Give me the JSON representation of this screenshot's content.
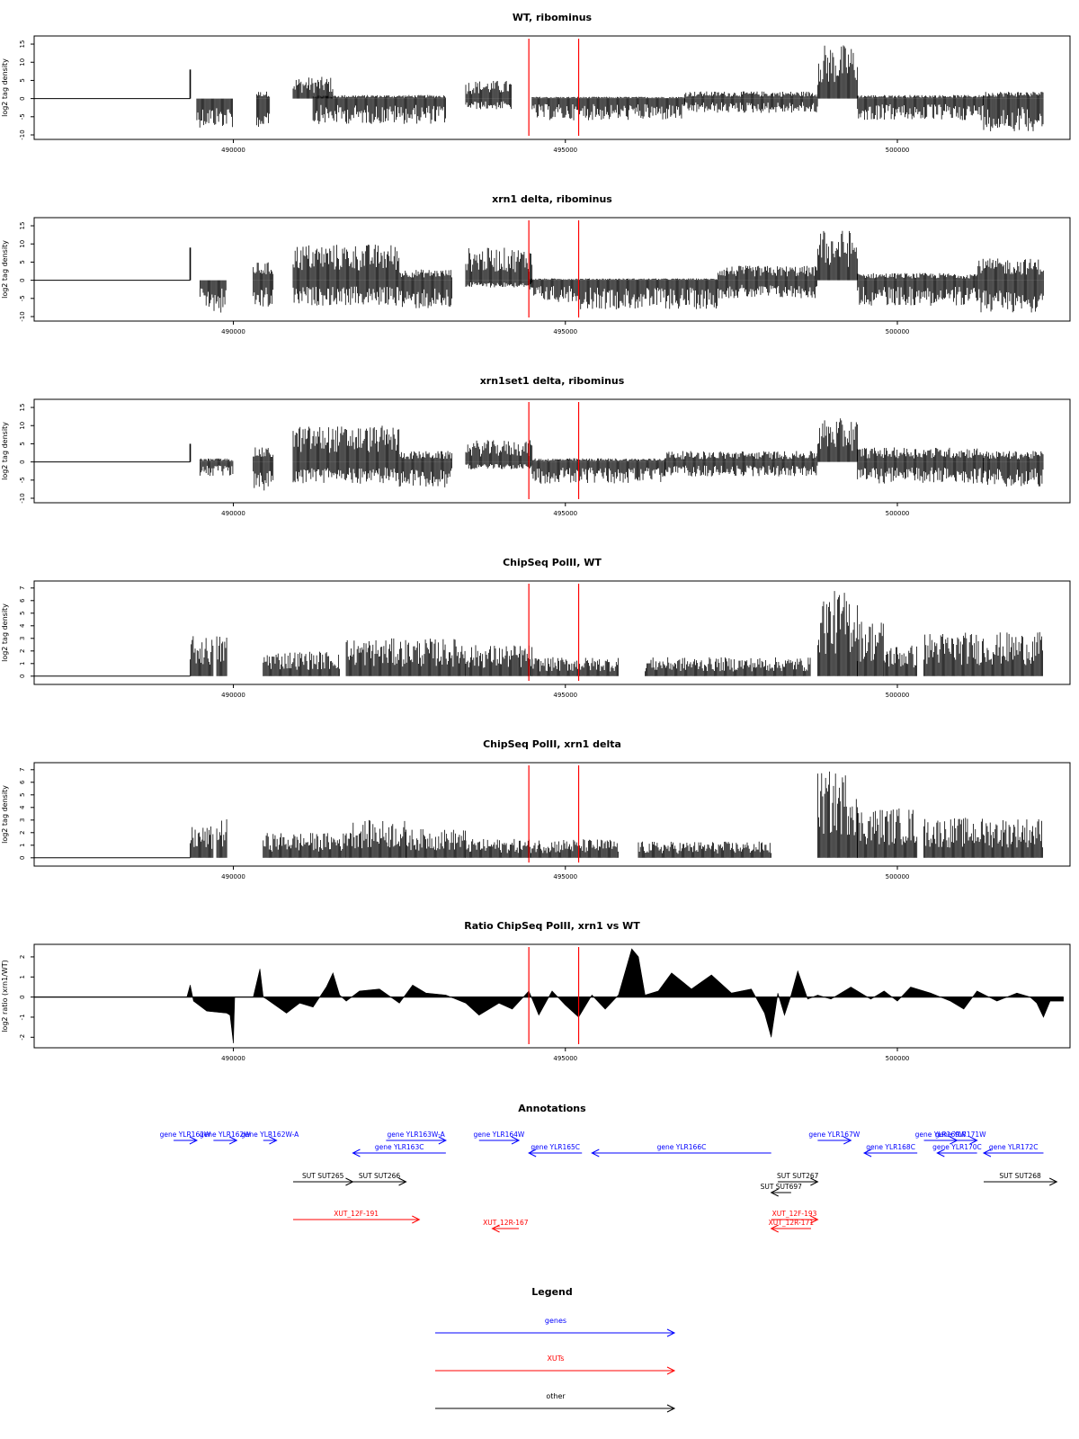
{
  "chart_data": [
    {
      "type": "bar",
      "title": "WT, ribominus",
      "xlabel": "",
      "ylabel": "log2 tag density",
      "xlim": [
        487000,
        502600
      ],
      "ylim": [
        -10,
        16
      ],
      "yticks": [
        "-10",
        "-5",
        "0",
        "5",
        "10",
        "15"
      ],
      "xticks": [
        "490000",
        "495000",
        "500000"
      ],
      "markers": [
        494450,
        495200
      ],
      "series": [
        {
          "regions": [
            [
              487000,
              489350,
              0,
              0
            ],
            [
              489350,
              489380,
              8,
              0
            ],
            [
              489450,
              490000,
              0,
              -8
            ],
            [
              490350,
              490550,
              2,
              -9
            ],
            [
              490900,
              491500,
              6,
              0
            ],
            [
              491200,
              493200,
              1,
              -7
            ],
            [
              493500,
              494200,
              5,
              -3
            ],
            [
              494500,
              496800,
              0.5,
              -6
            ],
            [
              496800,
              498800,
              2,
              -4
            ],
            [
              498800,
              499400,
              15,
              0
            ],
            [
              499400,
              501300,
              1,
              -6
            ],
            [
              501300,
              502200,
              2,
              -9
            ]
          ]
        }
      ]
    },
    {
      "type": "bar",
      "title": "xrn1 delta, ribominus",
      "xlabel": "",
      "ylabel": "log2 tag density",
      "xlim": [
        487000,
        502600
      ],
      "ylim": [
        -10,
        16
      ],
      "yticks": [
        "-10",
        "-5",
        "0",
        "5",
        "10",
        "15"
      ],
      "xticks": [
        "490000",
        "495000",
        "500000"
      ],
      "markers": [
        494450,
        495200
      ],
      "series": [
        {
          "regions": [
            [
              487000,
              489350,
              0,
              0
            ],
            [
              489350,
              489380,
              9,
              0
            ],
            [
              489500,
              489900,
              0,
              -9
            ],
            [
              490300,
              490600,
              5,
              -8
            ],
            [
              490900,
              492500,
              10,
              -7
            ],
            [
              492500,
              493300,
              3,
              -8
            ],
            [
              493500,
              494500,
              9,
              -2
            ],
            [
              494450,
              495200,
              0.5,
              -6
            ],
            [
              495200,
              497300,
              0.5,
              -8
            ],
            [
              497300,
              498800,
              4,
              -5
            ],
            [
              498800,
              499400,
              14,
              0
            ],
            [
              499400,
              501200,
              2,
              -7
            ],
            [
              501200,
              502200,
              6,
              -9
            ]
          ]
        }
      ]
    },
    {
      "type": "bar",
      "title": "xrn1set1 delta, ribominus",
      "xlabel": "",
      "ylabel": "log2 tag density",
      "xlim": [
        487000,
        502600
      ],
      "ylim": [
        -10,
        16
      ],
      "yticks": [
        "-10",
        "-5",
        "0",
        "5",
        "10",
        "15"
      ],
      "xticks": [
        "490000",
        "495000",
        "500000"
      ],
      "markers": [
        494450,
        495200
      ],
      "series": [
        {
          "regions": [
            [
              487000,
              489350,
              0,
              0
            ],
            [
              489350,
              489380,
              5,
              0
            ],
            [
              489500,
              490000,
              1,
              -4
            ],
            [
              490300,
              490600,
              4,
              -8
            ],
            [
              490900,
              492500,
              10,
              -6
            ],
            [
              492500,
              493300,
              3,
              -7
            ],
            [
              493500,
              494500,
              6,
              -2
            ],
            [
              494500,
              496500,
              1,
              -6
            ],
            [
              496500,
              498800,
              3,
              -4
            ],
            [
              498800,
              499400,
              12,
              0
            ],
            [
              499400,
              501300,
              4,
              -6
            ],
            [
              501300,
              502200,
              3,
              -7
            ]
          ]
        }
      ]
    },
    {
      "type": "bar",
      "title": "ChipSeq PolII, WT",
      "xlabel": "",
      "ylabel": "log2 tag density",
      "xlim": [
        487000,
        502600
      ],
      "ylim": [
        -0.3,
        7.2
      ],
      "yticks": [
        "0",
        "1",
        "2",
        "3",
        "4",
        "5",
        "6",
        "7"
      ],
      "xticks": [
        "490000",
        "495000",
        "500000"
      ],
      "markers": [
        494450,
        495200
      ],
      "series": [
        {
          "regions": [
            [
              487000,
              489350,
              0,
              0
            ],
            [
              489350,
              489700,
              3.2,
              0
            ],
            [
              489750,
              489900,
              3.3,
              0
            ],
            [
              490450,
              491600,
              2,
              0
            ],
            [
              491700,
              493500,
              3,
              0
            ],
            [
              493500,
              494500,
              2.5,
              0
            ],
            [
              494500,
              495800,
              1.5,
              0
            ],
            [
              496200,
              498700,
              1.5,
              0
            ],
            [
              498800,
              499400,
              6.8,
              0
            ],
            [
              499400,
              499800,
              4.5,
              0
            ],
            [
              499800,
              500300,
              2.5,
              0
            ],
            [
              500400,
              502200,
              3.5,
              0
            ]
          ]
        }
      ]
    },
    {
      "type": "bar",
      "title": "ChipSeq PolII, xrn1 delta",
      "xlabel": "",
      "ylabel": "log2 tag density",
      "xlim": [
        487000,
        502600
      ],
      "ylim": [
        -0.3,
        7.2
      ],
      "yticks": [
        "0",
        "1",
        "2",
        "3",
        "4",
        "5",
        "6",
        "7"
      ],
      "xticks": [
        "490000",
        "495000",
        "500000"
      ],
      "markers": [
        494450,
        495200
      ],
      "series": [
        {
          "regions": [
            [
              487000,
              489350,
              0,
              0
            ],
            [
              489350,
              489700,
              2.5,
              0
            ],
            [
              489750,
              489900,
              3.1,
              0
            ],
            [
              490450,
              491700,
              2,
              0
            ],
            [
              491700,
              492600,
              3,
              0
            ],
            [
              492600,
              493500,
              2.3,
              0
            ],
            [
              493500,
              495800,
              1.5,
              0
            ],
            [
              496100,
              498100,
              1.3,
              0
            ],
            [
              498800,
              499400,
              6.9,
              0
            ],
            [
              499400,
              500300,
              4,
              0
            ],
            [
              500400,
              502200,
              3.2,
              0
            ]
          ]
        }
      ]
    },
    {
      "type": "area",
      "title": "Ratio ChipSeq PolII, xrn1 vs WT",
      "xlabel": "",
      "ylabel": "log2 ratio (xrn1/WT)",
      "xlim": [
        487000,
        502600
      ],
      "ylim": [
        -2.3,
        2.4
      ],
      "yticks": [
        "-2",
        "-1",
        "0",
        "1",
        "2"
      ],
      "xticks": [
        "490000",
        "495000",
        "500000"
      ],
      "markers": [
        494450,
        495200
      ],
      "series": [
        {
          "x": [
            487000,
            489300,
            489350,
            489400,
            489600,
            489900,
            489950,
            490000,
            490020,
            490300,
            490400,
            490450,
            490500,
            490800,
            491000,
            491200,
            491400,
            491500,
            491600,
            491700,
            491900,
            492200,
            492500,
            492700,
            492900,
            493200,
            493500,
            493700,
            494000,
            494200,
            494450,
            494600,
            494800,
            495000,
            495200,
            495400,
            495600,
            495800,
            496000,
            496100,
            496200,
            496400,
            496600,
            496900,
            497200,
            497500,
            497800,
            498000,
            498100,
            498200,
            498300,
            498400,
            498500,
            498650,
            498800,
            499000,
            499300,
            499600,
            499800,
            500000,
            500200,
            500500,
            500800,
            501000,
            501200,
            501500,
            501800,
            502000,
            502100,
            502200,
            502300,
            502500
          ],
          "y": [
            0,
            0,
            0.6,
            -0.2,
            -0.7,
            -0.8,
            -0.9,
            -2.3,
            0,
            0,
            1.4,
            0,
            -0.1,
            -0.8,
            -0.3,
            -0.5,
            0.5,
            1.2,
            0.1,
            -0.2,
            0.3,
            0.4,
            -0.3,
            0.6,
            0.2,
            0.1,
            -0.3,
            -0.9,
            -0.3,
            -0.6,
            0.3,
            -0.9,
            0.3,
            -0.4,
            -1.0,
            0.1,
            -0.6,
            0.1,
            2.4,
            2.0,
            0.1,
            0.3,
            1.2,
            0.4,
            1.1,
            0.2,
            0.4,
            -0.8,
            -2.0,
            0.2,
            -0.9,
            0.1,
            1.3,
            -0.1,
            0.1,
            -0.1,
            0.5,
            -0.1,
            0.3,
            -0.2,
            0.5,
            0.2,
            -0.2,
            -0.6,
            0.3,
            -0.2,
            0.2,
            0.0,
            -0.3,
            -1.0,
            -0.2,
            -0.2
          ]
        }
      ]
    }
  ],
  "annotations": {
    "title": "Annotations",
    "genes": [
      {
        "label": "gene YLR162W",
        "start": 489100,
        "end": 489450,
        "strand": "+",
        "row": 0
      },
      {
        "label": "gene YLR162W",
        "start": 489700,
        "end": 490050,
        "strand": "+",
        "row": 0
      },
      {
        "label": "gene YLR162W-A",
        "start": 490450,
        "end": 490650,
        "strand": "+",
        "row": 0
      },
      {
        "label": "gene YLR163W-A",
        "start": 492300,
        "end": 493200,
        "strand": "+",
        "row": 0
      },
      {
        "label": "gene YLR163C",
        "start": 491800,
        "end": 493200,
        "strand": "-",
        "row": 1
      },
      {
        "label": "gene YLR164W",
        "start": 493700,
        "end": 494300,
        "strand": "+",
        "row": 0
      },
      {
        "label": "gene YLR165C",
        "start": 494450,
        "end": 495250,
        "strand": "-",
        "row": 1
      },
      {
        "label": "gene YLR166C",
        "start": 495400,
        "end": 498100,
        "strand": "-",
        "row": 1
      },
      {
        "label": "gene YLR167W",
        "start": 498800,
        "end": 499300,
        "strand": "+",
        "row": 0
      },
      {
        "label": "gene YLR169W",
        "start": 500400,
        "end": 500900,
        "strand": "+",
        "row": 0
      },
      {
        "label": "gene YLR171W",
        "start": 500700,
        "end": 501200,
        "strand": "+",
        "row": 0
      },
      {
        "label": "gene YLR168C",
        "start": 499500,
        "end": 500300,
        "strand": "-",
        "row": 1
      },
      {
        "label": "gene YLR170C",
        "start": 500600,
        "end": 501200,
        "strand": "-",
        "row": 1
      },
      {
        "label": "gene YLR172C",
        "start": 501300,
        "end": 502200,
        "strand": "-",
        "row": 1
      }
    ],
    "suts": [
      {
        "label": "SUT SUT265",
        "start": 490900,
        "end": 491800,
        "strand": "+",
        "row": 0
      },
      {
        "label": "SUT SUT266",
        "start": 491800,
        "end": 492600,
        "strand": "+",
        "row": 0
      },
      {
        "label": "SUT SUT267",
        "start": 498200,
        "end": 498800,
        "strand": "+",
        "row": 0
      },
      {
        "label": "SUT SUT697",
        "start": 498100,
        "end": 498400,
        "strand": "-",
        "row": 1
      },
      {
        "label": "SUT SUT268",
        "start": 501300,
        "end": 502400,
        "strand": "+",
        "row": 0
      }
    ],
    "xuts": [
      {
        "label": "XUT_12F-191",
        "start": 490900,
        "end": 492800,
        "strand": "+",
        "row": 0
      },
      {
        "label": "XUT_12R-167",
        "start": 493900,
        "end": 494300,
        "strand": "-",
        "row": 1
      },
      {
        "label": "XUT_12F-193",
        "start": 498100,
        "end": 498800,
        "strand": "+",
        "row": 0
      },
      {
        "label": "XUT_12R-171",
        "start": 498100,
        "end": 498700,
        "strand": "-",
        "row": 1
      }
    ]
  },
  "legend": {
    "title": "Legend",
    "items": [
      {
        "label": "genes",
        "color": "#0000ff"
      },
      {
        "label": "XUTs",
        "color": "#ff0000"
      },
      {
        "label": "other",
        "color": "#000000"
      }
    ]
  },
  "colors": {
    "data": "#000000",
    "marker": "#ff0000",
    "gene": "#0000ff",
    "xut": "#ff0000",
    "sut": "#000000"
  }
}
